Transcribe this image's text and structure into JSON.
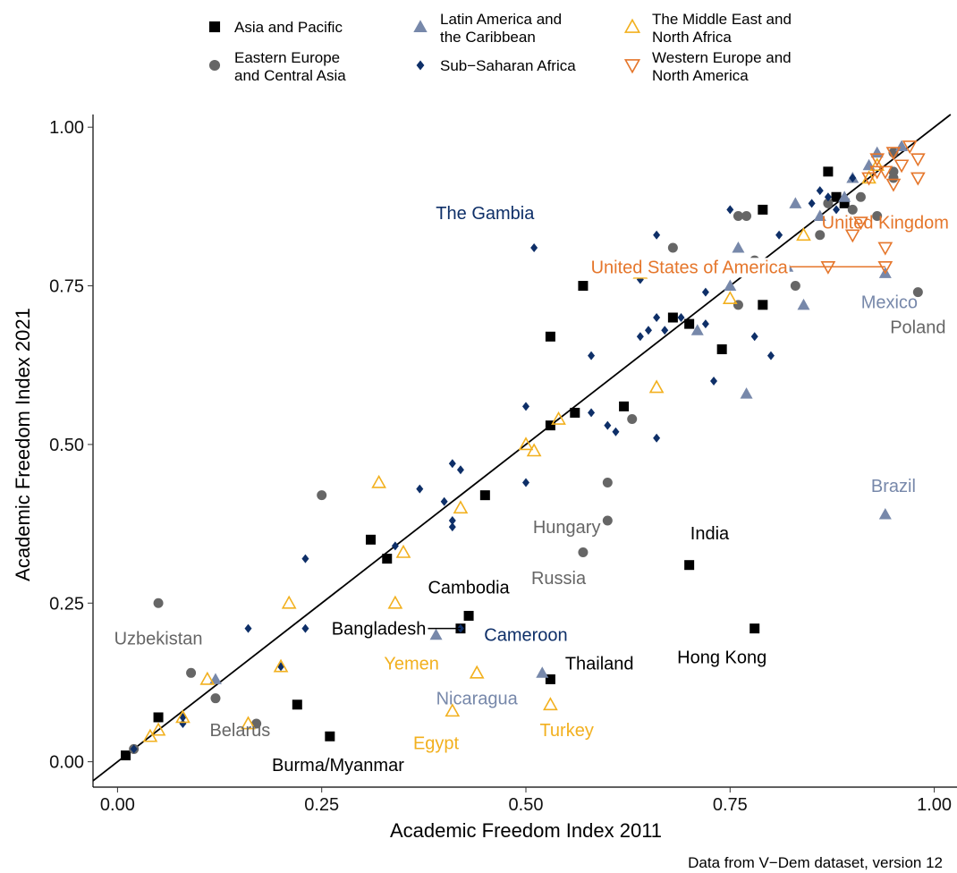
{
  "chart_data": {
    "type": "scatter",
    "xlabel": "Academic Freedom Index 2011",
    "ylabel": "Academic Freedom Index 2021",
    "caption": "Data from V−Dem dataset, version 12",
    "xlim": [
      -0.03,
      1.03
    ],
    "ylim": [
      -0.04,
      1.02
    ],
    "xticks": [
      0,
      0.25,
      0.5,
      0.75,
      1
    ],
    "yticks": [
      0,
      0.25,
      0.5,
      0.75,
      1
    ],
    "tick_labels": [
      "0.00",
      "0.25",
      "0.50",
      "0.75",
      "1.00"
    ],
    "grid": false,
    "legend_position": "top",
    "reference_line": "y = x",
    "series": [
      {
        "name": "Asia and Pacific",
        "shape": "square",
        "color": "#000000",
        "points": [
          [
            0.01,
            0.01
          ],
          [
            0.05,
            0.07
          ],
          [
            0.22,
            0.09
          ],
          [
            0.26,
            0.04
          ],
          [
            0.31,
            0.35
          ],
          [
            0.33,
            0.32
          ],
          [
            0.42,
            0.21
          ],
          [
            0.43,
            0.23
          ],
          [
            0.45,
            0.42
          ],
          [
            0.53,
            0.13
          ],
          [
            0.53,
            0.53
          ],
          [
            0.53,
            0.67
          ],
          [
            0.56,
            0.55
          ],
          [
            0.57,
            0.75
          ],
          [
            0.62,
            0.56
          ],
          [
            0.68,
            0.7
          ],
          [
            0.7,
            0.69
          ],
          [
            0.7,
            0.31
          ],
          [
            0.74,
            0.65
          ],
          [
            0.78,
            0.21
          ],
          [
            0.79,
            0.72
          ],
          [
            0.79,
            0.87
          ],
          [
            0.87,
            0.93
          ],
          [
            0.88,
            0.89
          ],
          [
            0.89,
            0.88
          ]
        ]
      },
      {
        "name": "Eastern Europe\nand Central Asia",
        "shape": "circle",
        "color": "#666666",
        "points": [
          [
            0.02,
            0.02
          ],
          [
            0.05,
            0.25
          ],
          [
            0.09,
            0.14
          ],
          [
            0.12,
            0.1
          ],
          [
            0.17,
            0.06
          ],
          [
            0.25,
            0.42
          ],
          [
            0.57,
            0.33
          ],
          [
            0.6,
            0.44
          ],
          [
            0.6,
            0.38
          ],
          [
            0.62,
            0.78
          ],
          [
            0.63,
            0.54
          ],
          [
            0.68,
            0.81
          ],
          [
            0.76,
            0.72
          ],
          [
            0.76,
            0.86
          ],
          [
            0.77,
            0.86
          ],
          [
            0.78,
            0.79
          ],
          [
            0.83,
            0.75
          ],
          [
            0.86,
            0.83
          ],
          [
            0.87,
            0.88
          ],
          [
            0.9,
            0.87
          ],
          [
            0.91,
            0.89
          ],
          [
            0.93,
            0.86
          ],
          [
            0.95,
            0.96
          ],
          [
            0.95,
            0.93
          ],
          [
            0.95,
            0.92
          ],
          [
            0.98,
            0.74
          ]
        ]
      },
      {
        "name": "Latin America and\nthe Caribbean",
        "shape": "triangle",
        "color": "#7788AA",
        "points": [
          [
            0.12,
            0.13
          ],
          [
            0.39,
            0.2
          ],
          [
            0.52,
            0.14
          ],
          [
            0.71,
            0.68
          ],
          [
            0.75,
            0.75
          ],
          [
            0.76,
            0.81
          ],
          [
            0.77,
            0.58
          ],
          [
            0.79,
            0.78
          ],
          [
            0.8,
            0.78
          ],
          [
            0.82,
            0.78
          ],
          [
            0.83,
            0.88
          ],
          [
            0.84,
            0.72
          ],
          [
            0.86,
            0.86
          ],
          [
            0.89,
            0.89
          ],
          [
            0.9,
            0.92
          ],
          [
            0.92,
            0.94
          ],
          [
            0.93,
            0.96
          ],
          [
            0.94,
            0.77
          ],
          [
            0.94,
            0.39
          ],
          [
            0.96,
            0.97
          ]
        ]
      },
      {
        "name": "Sub−Saharan Africa",
        "shape": "diamond",
        "color": "#0E2F68",
        "points": [
          [
            0.02,
            0.02
          ],
          [
            0.08,
            0.06
          ],
          [
            0.08,
            0.07
          ],
          [
            0.16,
            0.21
          ],
          [
            0.2,
            0.15
          ],
          [
            0.23,
            0.21
          ],
          [
            0.23,
            0.32
          ],
          [
            0.34,
            0.34
          ],
          [
            0.37,
            0.43
          ],
          [
            0.4,
            0.41
          ],
          [
            0.41,
            0.47
          ],
          [
            0.41,
            0.37
          ],
          [
            0.41,
            0.38
          ],
          [
            0.42,
            0.46
          ],
          [
            0.42,
            0.21
          ],
          [
            0.5,
            0.44
          ],
          [
            0.5,
            0.56
          ],
          [
            0.51,
            0.81
          ],
          [
            0.58,
            0.64
          ],
          [
            0.58,
            0.55
          ],
          [
            0.6,
            0.53
          ],
          [
            0.61,
            0.52
          ],
          [
            0.64,
            0.67
          ],
          [
            0.64,
            0.76
          ],
          [
            0.65,
            0.68
          ],
          [
            0.66,
            0.83
          ],
          [
            0.66,
            0.7
          ],
          [
            0.66,
            0.51
          ],
          [
            0.67,
            0.68
          ],
          [
            0.69,
            0.7
          ],
          [
            0.72,
            0.74
          ],
          [
            0.72,
            0.69
          ],
          [
            0.73,
            0.6
          ],
          [
            0.75,
            0.87
          ],
          [
            0.78,
            0.67
          ],
          [
            0.8,
            0.64
          ],
          [
            0.8,
            0.78
          ],
          [
            0.81,
            0.83
          ],
          [
            0.85,
            0.88
          ],
          [
            0.86,
            0.9
          ],
          [
            0.87,
            0.89
          ],
          [
            0.88,
            0.87
          ],
          [
            0.9,
            0.92
          ]
        ]
      },
      {
        "name": "The Middle East and\nNorth Africa",
        "shape": "triangle-open",
        "color": "#F2B01E",
        "points": [
          [
            0.04,
            0.04
          ],
          [
            0.05,
            0.05
          ],
          [
            0.08,
            0.07
          ],
          [
            0.11,
            0.13
          ],
          [
            0.16,
            0.06
          ],
          [
            0.2,
            0.15
          ],
          [
            0.21,
            0.25
          ],
          [
            0.32,
            0.44
          ],
          [
            0.34,
            0.25
          ],
          [
            0.35,
            0.33
          ],
          [
            0.41,
            0.08
          ],
          [
            0.42,
            0.4
          ],
          [
            0.44,
            0.14
          ],
          [
            0.5,
            0.5
          ],
          [
            0.51,
            0.49
          ],
          [
            0.53,
            0.09
          ],
          [
            0.54,
            0.54
          ],
          [
            0.64,
            0.77
          ],
          [
            0.66,
            0.59
          ],
          [
            0.75,
            0.73
          ],
          [
            0.84,
            0.83
          ],
          [
            0.92,
            0.92
          ],
          [
            0.93,
            0.94
          ]
        ]
      },
      {
        "name": "Western Europe and\nNorth America",
        "shape": "triangle-down-open",
        "color": "#E5762B",
        "points": [
          [
            0.87,
            0.78
          ],
          [
            0.9,
            0.83
          ],
          [
            0.91,
            0.85
          ],
          [
            0.92,
            0.92
          ],
          [
            0.93,
            0.93
          ],
          [
            0.93,
            0.95
          ],
          [
            0.94,
            0.78
          ],
          [
            0.94,
            0.81
          ],
          [
            0.94,
            0.93
          ],
          [
            0.95,
            0.91
          ],
          [
            0.95,
            0.96
          ],
          [
            0.96,
            0.94
          ],
          [
            0.97,
            0.97
          ],
          [
            0.98,
            0.92
          ],
          [
            0.98,
            0.95
          ]
        ]
      }
    ],
    "labels": [
      {
        "text": "The Gambia",
        "series": 3,
        "x": 0.51,
        "y": 0.81,
        "dx": -0.06,
        "dy": 0.055,
        "anchor": "middle"
      },
      {
        "text": "United Kingdom",
        "series": 5,
        "x": 0.94,
        "y": 0.81,
        "dx": 0.0,
        "dy": 0.04,
        "anchor": "middle"
      },
      {
        "text": "United States of America",
        "series": 5,
        "x": 0.94,
        "y": 0.78,
        "dx": -0.24,
        "dy": 0.0,
        "anchor": "middle",
        "line": true
      },
      {
        "text": "Mexico",
        "series": 2,
        "x": 0.94,
        "y": 0.77,
        "dx": 0.005,
        "dy": -0.045,
        "anchor": "middle"
      },
      {
        "text": "Poland",
        "series": 1,
        "x": 0.98,
        "y": 0.74,
        "dx": 0.0,
        "dy": -0.055,
        "anchor": "middle"
      },
      {
        "text": "Brazil",
        "series": 2,
        "x": 0.94,
        "y": 0.39,
        "dx": 0.01,
        "dy": 0.045,
        "anchor": "middle"
      },
      {
        "text": "Hungary",
        "series": 1,
        "x": 0.57,
        "y": 0.33,
        "dx": -0.02,
        "dy": 0.04,
        "anchor": "middle"
      },
      {
        "text": "Russia",
        "series": 1,
        "x": 0.57,
        "y": 0.33,
        "dx": -0.03,
        "dy": -0.04,
        "anchor": "middle"
      },
      {
        "text": "India",
        "series": 0,
        "x": 0.7,
        "y": 0.31,
        "dx": 0.025,
        "dy": 0.05,
        "anchor": "middle"
      },
      {
        "text": "Hong Kong",
        "series": 0,
        "x": 0.78,
        "y": 0.21,
        "dx": -0.04,
        "dy": -0.045,
        "anchor": "middle"
      },
      {
        "text": "Uzbekistan",
        "series": 1,
        "x": 0.05,
        "y": 0.25,
        "dx": 0.0,
        "dy": -0.055,
        "anchor": "middle"
      },
      {
        "text": "Cambodia",
        "series": 0,
        "x": 0.43,
        "y": 0.23,
        "dx": 0.0,
        "dy": 0.045,
        "anchor": "middle"
      },
      {
        "text": "Bangladesh",
        "series": 0,
        "x": 0.42,
        "y": 0.21,
        "dx": -0.1,
        "dy": 0.0,
        "anchor": "middle",
        "line": true
      },
      {
        "text": "Cameroon",
        "series": 3,
        "x": 0.42,
        "y": 0.21,
        "dx": 0.08,
        "dy": -0.01,
        "anchor": "middle"
      },
      {
        "text": "Yemen",
        "series": 4,
        "x": 0.44,
        "y": 0.14,
        "dx": -0.08,
        "dy": 0.015,
        "anchor": "middle"
      },
      {
        "text": "Thailand",
        "series": 0,
        "x": 0.53,
        "y": 0.13,
        "dx": 0.06,
        "dy": 0.025,
        "anchor": "middle"
      },
      {
        "text": "Nicaragua",
        "series": 2,
        "x": 0.52,
        "y": 0.14,
        "dx": -0.08,
        "dy": -0.04,
        "anchor": "middle"
      },
      {
        "text": "Belarus",
        "series": 1,
        "x": 0.12,
        "y": 0.1,
        "dx": 0.03,
        "dy": -0.05,
        "anchor": "middle"
      },
      {
        "text": "Egypt",
        "series": 4,
        "x": 0.41,
        "y": 0.08,
        "dx": -0.02,
        "dy": -0.05,
        "anchor": "middle"
      },
      {
        "text": "Turkey",
        "series": 4,
        "x": 0.53,
        "y": 0.09,
        "dx": 0.02,
        "dy": -0.04,
        "anchor": "middle"
      },
      {
        "text": "Burma/Myanmar",
        "series": 0,
        "x": 0.26,
        "y": 0.04,
        "dx": 0.01,
        "dy": -0.045,
        "anchor": "middle"
      }
    ]
  }
}
